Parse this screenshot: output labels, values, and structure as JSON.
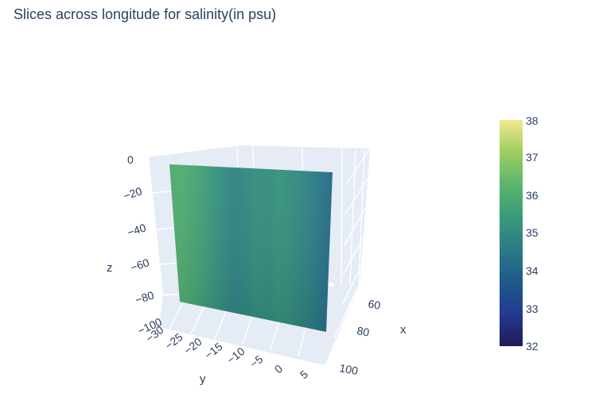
{
  "chart_data": {
    "type": "surface",
    "title": "Slices across longitude for salinity(in psu)",
    "variable": "salinity",
    "unit": "psu",
    "axes": {
      "x": {
        "title": "x",
        "ticks": [
          "60",
          "80",
          "100"
        ]
      },
      "y": {
        "title": "y",
        "ticks": [
          "−30",
          "−25",
          "−20",
          "−15",
          "−10",
          "−5",
          "0",
          "5"
        ]
      },
      "z": {
        "title": "z",
        "ticks": [
          "0",
          "−20",
          "−40",
          "−60",
          "−80",
          "−100"
        ]
      }
    },
    "colorbar": {
      "ticks": [
        "38",
        "37",
        "36",
        "35",
        "34",
        "33",
        "32"
      ],
      "range": [
        32,
        38
      ],
      "colorscale": [
        "#1e1a59",
        "#233b8f",
        "#1f5a8a",
        "#2b7b86",
        "#3a9a78",
        "#5bb56b",
        "#9cce5f",
        "#f3e890"
      ]
    },
    "slice": {
      "y_range": [
        -30,
        5
      ],
      "z_range": [
        -100,
        0
      ],
      "salinity_profile_along_y": [
        35.9,
        36.0,
        35.8,
        35.6,
        35.3,
        35.0,
        34.8,
        34.9,
        35.1,
        35.0,
        35.2,
        35.1,
        34.9,
        34.7,
        34.4,
        34.1
      ]
    },
    "background": "#e5ecf6",
    "gridline_color": "#ffffff"
  }
}
